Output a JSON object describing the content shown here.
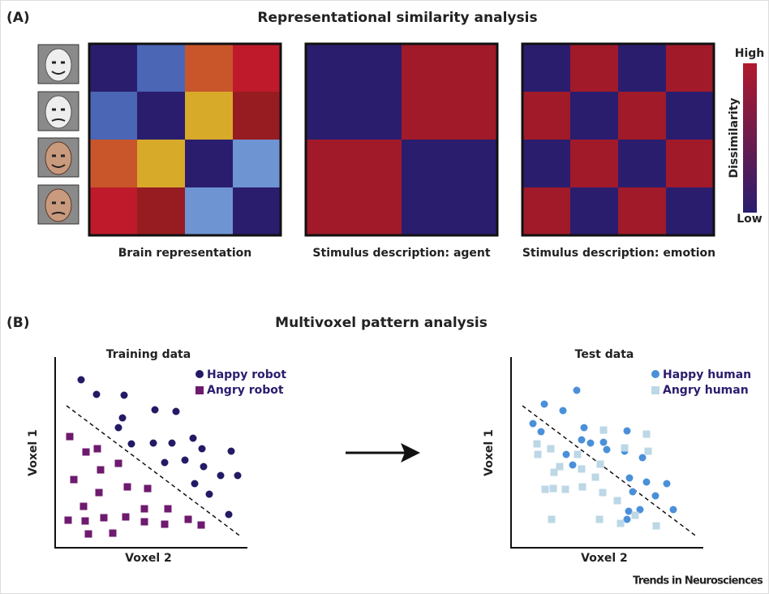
{
  "panel_a": {
    "label": "(A)",
    "title": "Representational similarity analysis",
    "colorbar": {
      "high": "High",
      "label": "Dissimilarity",
      "low": "Low"
    },
    "matrices": [
      {
        "caption": "Brain representation"
      },
      {
        "caption": "Stimulus description: agent"
      },
      {
        "caption": "Stimulus description: emotion"
      }
    ]
  },
  "panel_b": {
    "label": "(B)",
    "title": "Multivoxel pattern analysis",
    "plots": [
      {
        "title": "Training data",
        "legend": [
          "Happy robot",
          "Angry robot"
        ],
        "y_label": "Voxel 1",
        "x_label": "Voxel 2"
      },
      {
        "title": "Test data",
        "legend": [
          "Happy human",
          "Angry human"
        ],
        "y_label": "Voxel 1",
        "x_label": "Voxel 2"
      }
    ]
  },
  "footer": "Trends in Neurosciences"
}
